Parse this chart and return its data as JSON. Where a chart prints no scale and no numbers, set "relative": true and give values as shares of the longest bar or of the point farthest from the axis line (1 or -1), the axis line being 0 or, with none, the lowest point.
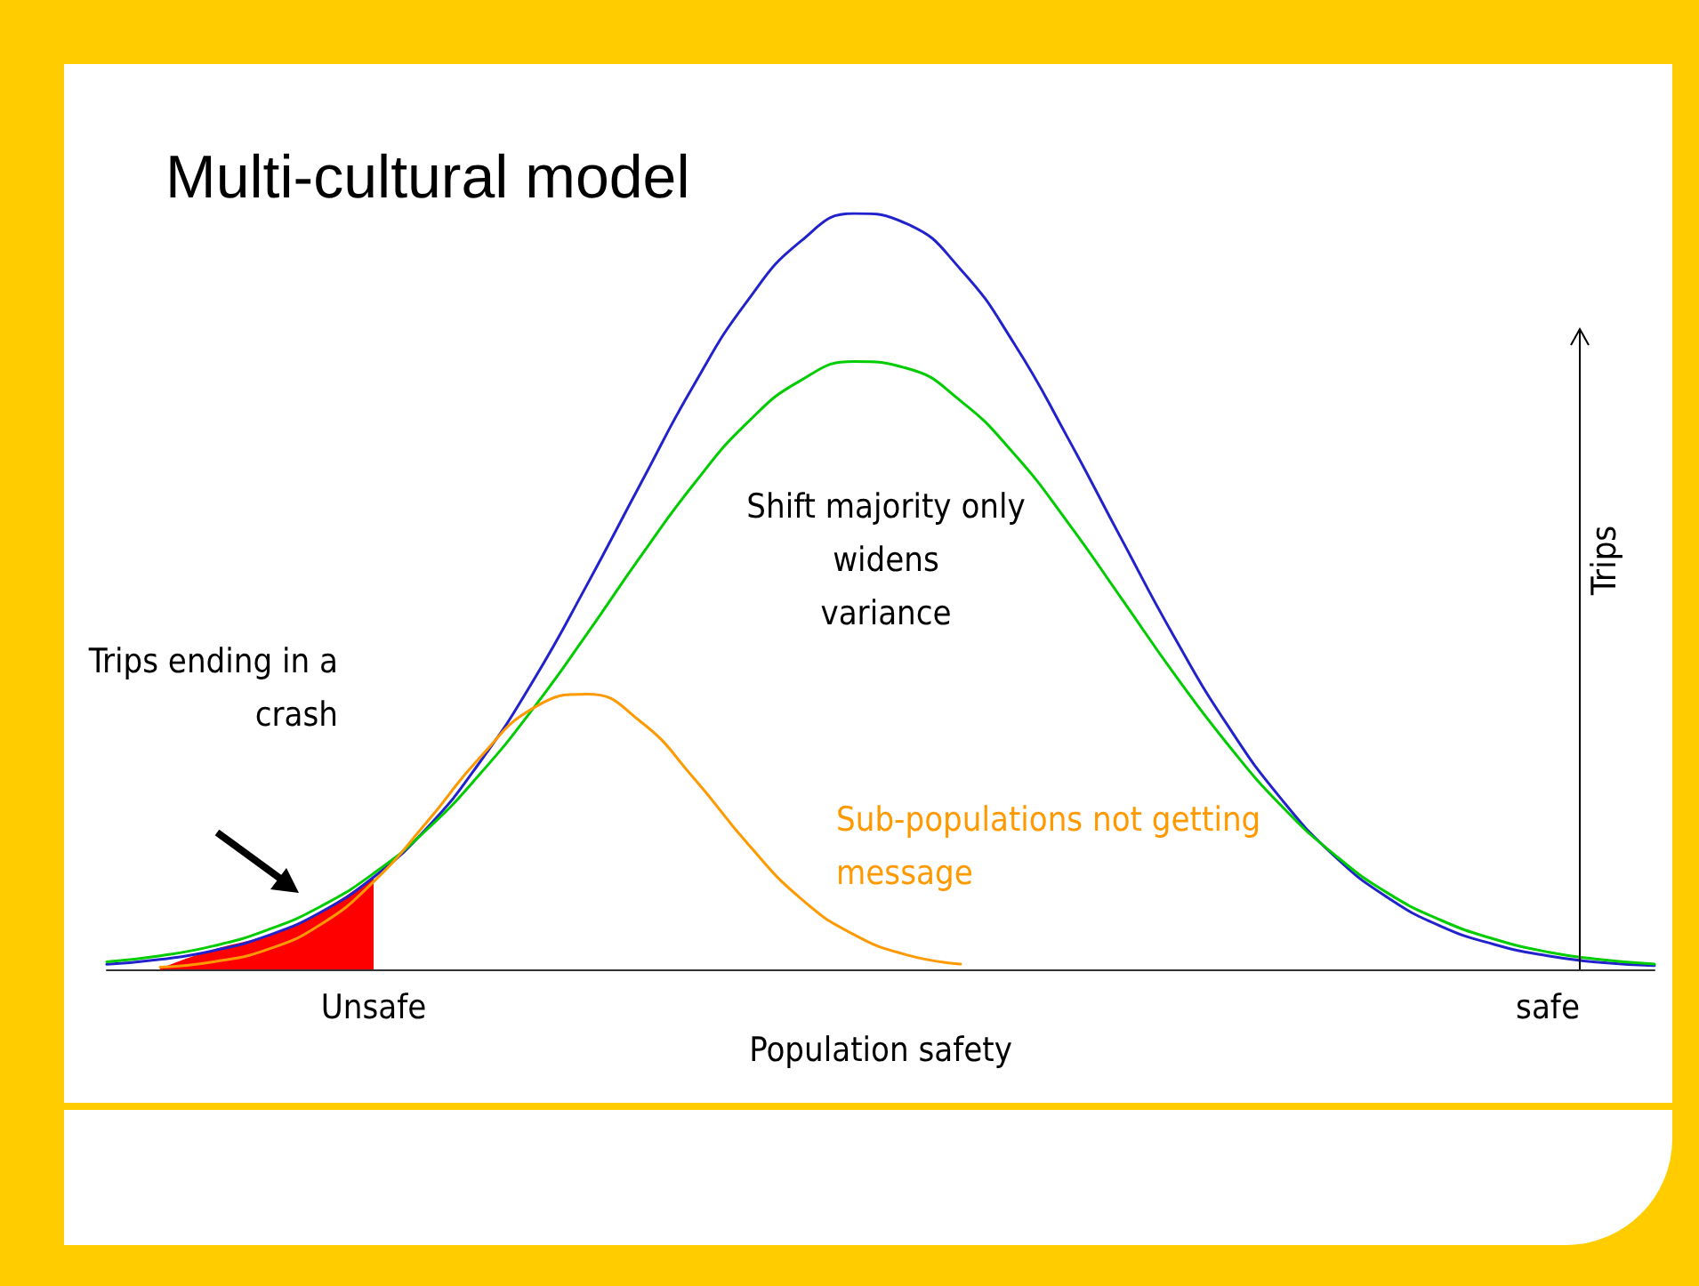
{
  "chart_data": {
    "type": "line",
    "title": "Multi-cultural model",
    "xlabel": "Population safety",
    "ylabel": "Trips",
    "relative": true,
    "legend": false,
    "grid": false,
    "marker": "none",
    "line_style": "solid",
    "tick_labels": "x",
    "categories": [
      null,
      null,
      null,
      null,
      null,
      "Unsafe",
      null,
      null,
      null,
      null,
      null,
      null,
      null,
      null,
      null,
      null,
      null,
      null,
      null,
      null,
      null,
      null,
      null,
      null,
      null,
      null,
      null,
      "safe",
      null,
      null
    ],
    "series": [
      {
        "color": "#ff0000",
        "type": "area",
        "values": [
          null,
          0.0,
          0.025,
          0.044,
          0.075,
          0.122,
          null,
          null,
          null,
          null,
          null,
          null,
          null,
          null,
          null,
          null,
          null,
          null,
          null,
          null,
          null,
          null,
          null,
          null,
          null,
          null,
          null,
          null,
          null,
          null
        ]
      },
      {
        "color": "#2222cc",
        "values": [
          0.0067,
          0.0132,
          0.0248,
          0.0443,
          0.0753,
          0.122,
          0.187,
          0.275,
          0.383,
          0.509,
          0.642,
          0.773,
          0.884,
          0.963,
          1,
          0.986,
          0.926,
          0.828,
          0.704,
          0.571,
          0.44,
          0.323,
          0.226,
          0.15,
          0.095,
          0.057,
          0.033,
          0.018,
          0.009,
          0.005
        ]
      },
      {
        "color": "#00cc00",
        "values": [
          0.01,
          0.018,
          0.031,
          0.052,
          0.083,
          0.127,
          0.185,
          0.259,
          0.346,
          0.444,
          0.546,
          0.642,
          0.723,
          0.779,
          0.804,
          0.795,
          0.752,
          0.682,
          0.592,
          0.492,
          0.391,
          0.298,
          0.217,
          0.152,
          0.101,
          0.065,
          0.04,
          0.023,
          0.013,
          0.007
        ]
      },
      {
        "name": "Sub-populations not getting message",
        "color": "#ff9900",
        "values": [
          null,
          0.003,
          0.01,
          0.026,
          0.059,
          0.116,
          0.195,
          0.281,
          0.346,
          0.364,
          0.328,
          0.253,
          0.167,
          0.094,
          0.046,
          0.019,
          0.007,
          null,
          null,
          null,
          null,
          null,
          null,
          null,
          null,
          null,
          null,
          null,
          null,
          null
        ]
      }
    ],
    "annotations": [
      "Shift majority only widens variance",
      "Trips ending in a crash"
    ]
  }
}
